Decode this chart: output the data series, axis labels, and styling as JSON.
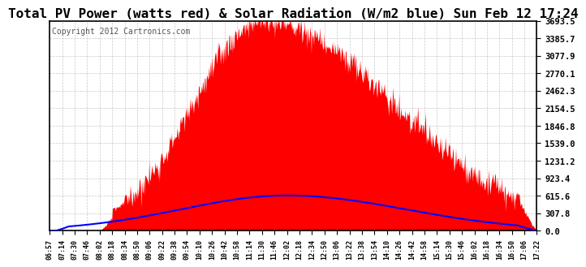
{
  "title": "Total PV Power (watts red) & Solar Radiation (W/m2 blue) Sun Feb 12 17:24",
  "copyright": "Copyright 2012 Cartronics.com",
  "y_max": 3693.5,
  "y_ticks": [
    0.0,
    307.8,
    615.6,
    923.4,
    1231.2,
    1539.0,
    1846.8,
    2154.5,
    2462.3,
    2770.1,
    3077.9,
    3385.7,
    3693.5
  ],
  "x_labels": [
    "06:57",
    "07:14",
    "07:30",
    "07:46",
    "08:02",
    "08:18",
    "08:34",
    "08:50",
    "09:06",
    "09:22",
    "09:38",
    "09:54",
    "10:10",
    "10:26",
    "10:42",
    "10:58",
    "11:14",
    "11:30",
    "11:46",
    "12:02",
    "12:18",
    "12:34",
    "12:50",
    "13:06",
    "13:22",
    "13:38",
    "13:54",
    "14:10",
    "14:26",
    "14:42",
    "14:58",
    "15:14",
    "15:30",
    "15:46",
    "16:02",
    "16:18",
    "16:34",
    "16:50",
    "17:06",
    "17:22"
  ],
  "pv_color": "#ff0000",
  "solar_color": "#0000ff",
  "bg_color": "#ffffff",
  "grid_color": "#bbbbbb",
  "title_fontsize": 11.5,
  "annotation_fontsize": 7,
  "tick_fontsize": 7.5,
  "x_tick_fontsize": 6.0
}
